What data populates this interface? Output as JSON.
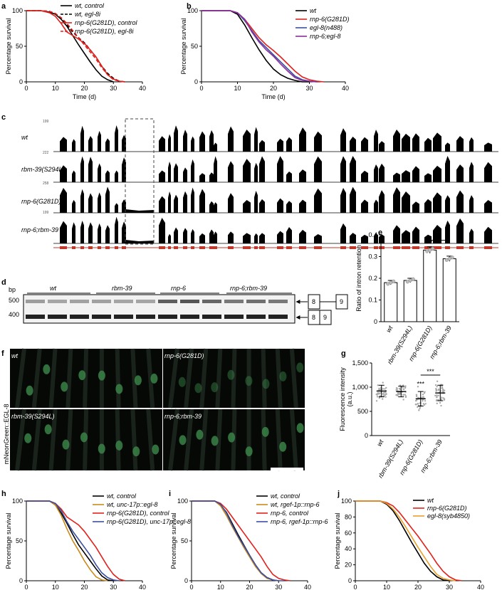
{
  "panels": {
    "a": "a",
    "b": "b",
    "c": "c",
    "d": "d",
    "e": "e",
    "f": "f",
    "g": "g",
    "h": "h",
    "i": "i",
    "j": "j"
  },
  "chart_data": [
    {
      "id": "a",
      "type": "line",
      "ylabel": "Percentage survival",
      "xlabel": "Time (d)",
      "xlim": [
        0,
        40
      ],
      "ylim": [
        0,
        100
      ],
      "xticks": [
        0,
        10,
        20,
        30,
        40
      ],
      "yticks": [
        0,
        50,
        100
      ],
      "legend_position": "top-right",
      "series": [
        {
          "name": "wt, control",
          "color": "#000000",
          "dash": "solid",
          "x": [
            0,
            5,
            8,
            10,
            12,
            14,
            16,
            18,
            20,
            22,
            24,
            26,
            28,
            30
          ],
          "y": [
            100,
            100,
            98,
            95,
            88,
            78,
            65,
            52,
            40,
            28,
            17,
            8,
            3,
            0
          ]
        },
        {
          "name": "wt, egl-8i",
          "color": "#000000",
          "dash": "dashed",
          "x": [
            0,
            5,
            8,
            10,
            12,
            14,
            16,
            18,
            20,
            22,
            24,
            26,
            28,
            30,
            32,
            34
          ],
          "y": [
            100,
            100,
            99,
            96,
            90,
            80,
            70,
            62,
            55,
            45,
            35,
            22,
            12,
            5,
            1,
            0
          ]
        },
        {
          "name": "rnp-6(G281D), control",
          "color": "#e2211c",
          "dash": "solid",
          "x": [
            0,
            5,
            8,
            10,
            12,
            14,
            16,
            18,
            20,
            22,
            24,
            26,
            28,
            30,
            32,
            34
          ],
          "y": [
            100,
            100,
            97,
            92,
            82,
            70,
            65,
            60,
            54,
            45,
            35,
            22,
            10,
            4,
            1,
            0
          ]
        },
        {
          "name": "rnp-6(G281D), egl-8i",
          "color": "#e2211c",
          "dash": "dashed",
          "x": [
            0,
            5,
            8,
            10,
            12,
            14,
            16,
            18,
            20,
            22,
            24,
            26,
            28,
            30,
            32,
            34
          ],
          "y": [
            100,
            100,
            99,
            96,
            90,
            82,
            72,
            62,
            52,
            42,
            32,
            20,
            10,
            3,
            1,
            0
          ]
        }
      ]
    },
    {
      "id": "b",
      "type": "line",
      "ylabel": "Percentage survival",
      "xlabel": "Time (d)",
      "xlim": [
        0,
        40
      ],
      "ylim": [
        0,
        100
      ],
      "xticks": [
        0,
        10,
        20,
        30,
        40
      ],
      "yticks": [
        0,
        50,
        100
      ],
      "legend_position": "top-right",
      "series": [
        {
          "name": "wt",
          "color": "#000000",
          "dash": "solid",
          "x": [
            0,
            8,
            10,
            12,
            14,
            16,
            18,
            20,
            22,
            24,
            26,
            28,
            30
          ],
          "y": [
            100,
            100,
            95,
            80,
            62,
            45,
            30,
            18,
            10,
            5,
            2,
            0,
            0
          ]
        },
        {
          "name": "rnp-6(G281D)",
          "color": "#e2211c",
          "dash": "solid",
          "x": [
            0,
            8,
            10,
            12,
            14,
            16,
            18,
            20,
            22,
            24,
            26,
            28,
            30,
            32,
            34
          ],
          "y": [
            100,
            100,
            97,
            88,
            75,
            62,
            52,
            44,
            35,
            25,
            15,
            7,
            3,
            1,
            0
          ]
        },
        {
          "name": "egl-8(n488)",
          "color": "#3d4fa0",
          "dash": "solid",
          "x": [
            0,
            8,
            10,
            12,
            14,
            16,
            18,
            20,
            22,
            24,
            26,
            28,
            30,
            32
          ],
          "y": [
            100,
            100,
            97,
            86,
            72,
            58,
            48,
            38,
            28,
            18,
            8,
            3,
            1,
            0
          ]
        },
        {
          "name": "rnp-6;egl-8",
          "color": "#8b2e9c",
          "dash": "solid",
          "x": [
            0,
            8,
            10,
            12,
            14,
            16,
            18,
            20,
            22,
            24,
            26,
            28,
            30,
            32
          ],
          "y": [
            100,
            100,
            97,
            88,
            70,
            56,
            45,
            36,
            25,
            15,
            6,
            2,
            1,
            0
          ]
        }
      ]
    },
    {
      "id": "e",
      "type": "bar",
      "ylabel": "Ratio of intron retention",
      "categories": [
        "wt",
        "rbm-39(S294L)",
        "rnp-6(G281D)",
        "rnp-6;rbm-39"
      ],
      "values": [
        0.18,
        0.19,
        0.33,
        0.29
      ],
      "errors": [
        0.01,
        0.01,
        0.015,
        0.012
      ],
      "ylim": [
        0,
        0.4
      ],
      "yticks": [
        0,
        0.1,
        0.2,
        0.3,
        0.4
      ],
      "annotations": [
        "**",
        "*"
      ]
    },
    {
      "id": "g",
      "type": "scatter",
      "ylabel": "Fluorescence intensity (a.u.)",
      "categories": [
        "wt",
        "rbm-39(S294L)",
        "rnp-6(G281D)",
        "rnp-6;rbm-39"
      ],
      "means": [
        920,
        910,
        760,
        880
      ],
      "sd": [
        120,
        110,
        150,
        160
      ],
      "ylim": [
        0,
        1500
      ],
      "yticks": [
        0,
        500,
        1000,
        1500
      ],
      "ytick_labels": [
        "0",
        "500",
        "1,000",
        "1,500"
      ],
      "annotations": [
        "***",
        "***"
      ]
    },
    {
      "id": "h",
      "type": "line",
      "ylabel": "Percentage survival",
      "xlabel": "Time (d)",
      "xlim": [
        0,
        40
      ],
      "ylim": [
        0,
        100
      ],
      "xticks": [
        0,
        10,
        20,
        30,
        40
      ],
      "yticks": [
        0,
        50,
        100
      ],
      "legend_position": "top-right",
      "series": [
        {
          "name": "wt, control",
          "color": "#000000",
          "dash": "solid",
          "x": [
            0,
            8,
            10,
            12,
            14,
            16,
            18,
            20,
            22,
            24,
            26,
            28,
            30
          ],
          "y": [
            100,
            100,
            95,
            85,
            72,
            58,
            45,
            35,
            25,
            15,
            6,
            1,
            0
          ]
        },
        {
          "name": "wt, unc-17p::egl-8",
          "color": "#c98a1e",
          "dash": "solid",
          "x": [
            0,
            8,
            10,
            12,
            14,
            16,
            18,
            20,
            22,
            24,
            26,
            28
          ],
          "y": [
            100,
            100,
            95,
            82,
            65,
            50,
            38,
            25,
            14,
            5,
            1,
            0
          ]
        },
        {
          "name": "rnp-6(G281D), control",
          "color": "#e2211c",
          "dash": "solid",
          "x": [
            0,
            8,
            10,
            12,
            14,
            16,
            18,
            20,
            22,
            24,
            26,
            28,
            30,
            32,
            34
          ],
          "y": [
            100,
            100,
            97,
            90,
            80,
            75,
            70,
            62,
            52,
            42,
            30,
            18,
            8,
            2,
            0
          ]
        },
        {
          "name": "rnp-6(G281D), unc-17p::egl-8",
          "color": "#3d4fa0",
          "dash": "solid",
          "x": [
            0,
            8,
            10,
            12,
            14,
            16,
            18,
            20,
            22,
            24,
            26,
            28,
            30,
            32
          ],
          "y": [
            100,
            100,
            97,
            88,
            74,
            62,
            52,
            42,
            32,
            20,
            10,
            4,
            1,
            0
          ]
        }
      ]
    },
    {
      "id": "i",
      "type": "line",
      "ylabel": "Percentage survival",
      "xlabel": "Time (d)",
      "xlim": [
        0,
        40
      ],
      "ylim": [
        0,
        100
      ],
      "xticks": [
        0,
        10,
        20,
        30,
        40
      ],
      "yticks": [
        0,
        50,
        100
      ],
      "legend_position": "top-right",
      "series": [
        {
          "name": "wt, control",
          "color": "#000000",
          "dash": "solid",
          "x": [
            0,
            8,
            10,
            12,
            14,
            16,
            18,
            20,
            22,
            24,
            26,
            28,
            30
          ],
          "y": [
            100,
            100,
            95,
            86,
            72,
            58,
            45,
            32,
            20,
            10,
            4,
            1,
            0
          ]
        },
        {
          "name": "wt, rgef-1p::rnp-6",
          "color": "#c98a1e",
          "dash": "solid",
          "x": [
            0,
            8,
            10,
            12,
            14,
            16,
            18,
            20,
            22,
            24,
            26,
            28,
            30
          ],
          "y": [
            100,
            100,
            94,
            82,
            68,
            55,
            42,
            30,
            18,
            9,
            3,
            1,
            0
          ]
        },
        {
          "name": "rnp-6, control",
          "color": "#e2211c",
          "dash": "solid",
          "x": [
            0,
            8,
            10,
            12,
            14,
            16,
            18,
            20,
            22,
            24,
            26,
            28,
            30,
            32,
            34
          ],
          "y": [
            100,
            100,
            97,
            90,
            80,
            70,
            60,
            50,
            40,
            30,
            18,
            8,
            3,
            1,
            0
          ]
        },
        {
          "name": "rnp-6, rgef-1p::rnp-6",
          "color": "#3d4fa0",
          "dash": "solid",
          "x": [
            0,
            8,
            10,
            12,
            14,
            16,
            18,
            20,
            22,
            24,
            26,
            28,
            30,
            32
          ],
          "y": [
            100,
            100,
            96,
            85,
            70,
            56,
            44,
            32,
            20,
            10,
            4,
            1,
            0,
            0
          ]
        }
      ]
    },
    {
      "id": "j",
      "type": "line",
      "ylabel": "Percentage survival",
      "xlabel": "Time (d)",
      "xlim": [
        0,
        40
      ],
      "ylim": [
        0,
        100
      ],
      "xticks": [
        0,
        10,
        20,
        30,
        40
      ],
      "yticks": [
        0,
        20,
        40,
        60,
        80,
        100
      ],
      "legend_position": "top-right",
      "series": [
        {
          "name": "wt",
          "color": "#000000",
          "dash": "solid",
          "x": [
            0,
            8,
            10,
            12,
            14,
            16,
            18,
            20,
            22,
            24,
            26,
            28,
            30
          ],
          "y": [
            100,
            100,
            96,
            88,
            76,
            62,
            48,
            35,
            22,
            12,
            5,
            1,
            0
          ]
        },
        {
          "name": "rnp-6(G281D)",
          "color": "#e2211c",
          "dash": "solid",
          "x": [
            0,
            8,
            10,
            12,
            14,
            16,
            18,
            20,
            22,
            24,
            26,
            28,
            30,
            32,
            34
          ],
          "y": [
            100,
            100,
            98,
            94,
            86,
            76,
            66,
            56,
            45,
            34,
            22,
            12,
            5,
            1,
            0
          ]
        },
        {
          "name": "egl-8(syb4850)",
          "color": "#e8a02a",
          "dash": "solid",
          "x": [
            0,
            8,
            10,
            12,
            14,
            16,
            18,
            20,
            22,
            24,
            26,
            28,
            30,
            32
          ],
          "y": [
            100,
            100,
            97,
            90,
            80,
            68,
            55,
            42,
            30,
            18,
            8,
            3,
            1,
            0
          ]
        }
      ]
    }
  ],
  "panel_c": {
    "tracks": [
      {
        "label": "wt",
        "scale": "199"
      },
      {
        "label": "rbm-39(S294L)",
        "scale": "222"
      },
      {
        "label": "rnp-6(G281D)",
        "scale": "258"
      },
      {
        "label": "rnp-6;rbm-39",
        "scale": "199"
      }
    ],
    "colors": {
      "coverage": "#000000",
      "gene_model": "#c0392b"
    }
  },
  "panel_d": {
    "unit": "bp",
    "markers": [
      "500",
      "400"
    ],
    "groups": [
      "wt",
      "rbm-39",
      "rnp-6",
      "rnp-6;rbm-39"
    ],
    "exon_top": [
      "8",
      "9"
    ],
    "exon_bottom": [
      "8",
      "9"
    ]
  },
  "panel_f": {
    "ylabel": "mNeonGreen::EGL-8",
    "images": [
      "wt",
      "rnp-6(G281D)",
      "rbm-39(S294L)",
      "rnp-6;rbm-39"
    ],
    "colors": {
      "background": "#050805",
      "signal": "#3c8a4a",
      "scale_bar": "#ffffff"
    }
  }
}
